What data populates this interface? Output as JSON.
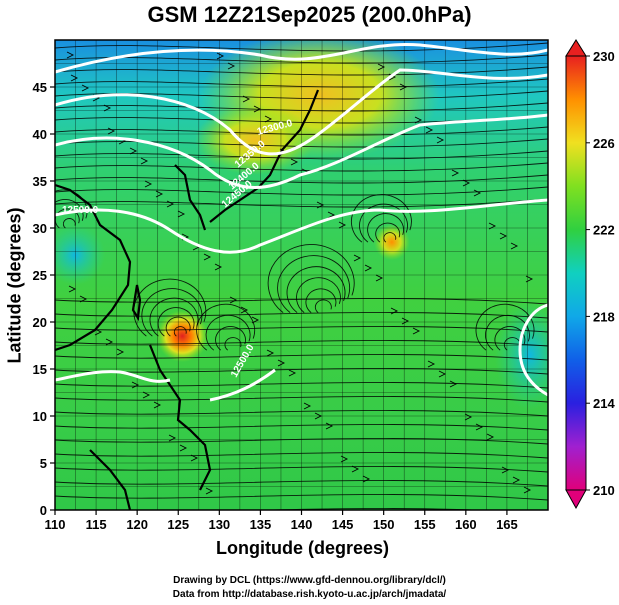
{
  "title": "GSM 12Z21Sep2025 (200.0hPa)",
  "x_axis": {
    "label": "Longitude (degrees)",
    "min": 110,
    "max": 170,
    "ticks": [
      "110",
      "115",
      "120",
      "125",
      "130",
      "135",
      "140",
      "145",
      "150",
      "155",
      "160",
      "165"
    ]
  },
  "y_axis": {
    "label": "Latitude  (degrees)",
    "min": 0,
    "max": 50,
    "ticks": [
      "0",
      "5",
      "10",
      "15",
      "20",
      "25",
      "30",
      "35",
      "40",
      "45"
    ]
  },
  "colorbar": {
    "min": 210,
    "max": 230,
    "ticks": [
      "210",
      "214",
      "218",
      "222",
      "226",
      "230"
    ],
    "colors": [
      "#e0007a",
      "#a020d0",
      "#2a20e0",
      "#1080e8",
      "#10c0d8",
      "#20d090",
      "#30d030",
      "#80e020",
      "#d8e020",
      "#ffb000",
      "#ff6000",
      "#e82020"
    ]
  },
  "contour_labels": [
    "12500.0",
    "12500.0",
    "12450.0",
    "12400.0",
    "12350.0",
    "12300.0"
  ],
  "credits": [
    "Drawing by DCL (https://www.gfd-dennou.org/library/dcl/)",
    "Data from http://database.rish.kyoto-u.ac.jp/arch/jmadata/"
  ],
  "map_features": {
    "typhoon_center": {
      "lon": 125.5,
      "lat": 18.5,
      "temp": 228
    },
    "warm_spot": {
      "lon": 151,
      "lat": 28.5,
      "temp": 226
    }
  }
}
